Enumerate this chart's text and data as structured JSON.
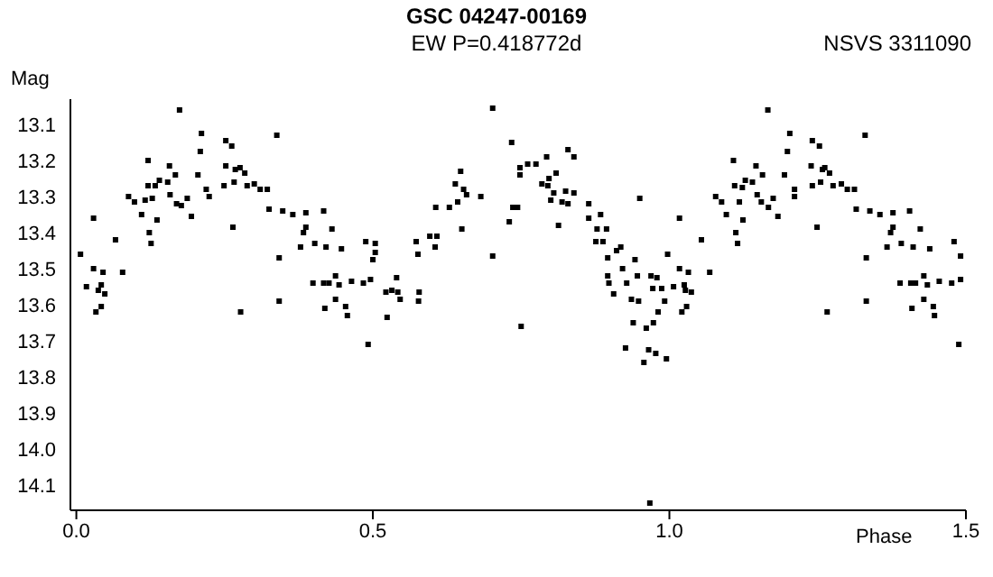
{
  "chart_data": {
    "type": "scatter",
    "title": "GSC 04247-00169",
    "subtitle": "EW P=0.418772d",
    "annotations": [
      "NSVS 3311090"
    ],
    "xlabel": "Phase",
    "ylabel": "Mag",
    "xlim": [
      -0.01,
      1.5
    ],
    "ylim": [
      14.17,
      13.03
    ],
    "xticks": [
      {
        "value": 0,
        "label": "0.0"
      },
      {
        "value": 0.5,
        "label": "0.5"
      },
      {
        "value": 1,
        "label": "1.0"
      },
      {
        "value": 1.5,
        "label": "1.5"
      }
    ],
    "yticks": [
      13.1,
      13.2,
      13.3,
      13.4,
      13.5,
      13.6,
      13.7,
      13.8,
      13.9,
      {
        "value": 14,
        "label": "14.0"
      },
      14.1
    ],
    "grid": false,
    "legend": false,
    "marker": "square",
    "series": [
      {
        "color": "#000000",
        "x": [
          0.007,
          0.017,
          0.029,
          0.029,
          0.033,
          0.037,
          0.042,
          0.042,
          0.045,
          0.048,
          0.066,
          0.078,
          0.088,
          0.098,
          0.11,
          0.116,
          0.121,
          0.121,
          0.123,
          0.126,
          0.128,
          0.133,
          0.136,
          0.14,
          0.154,
          0.157,
          0.158,
          0.167,
          0.169,
          0.174,
          0.177,
          0.187,
          0.194,
          0.205,
          0.209,
          0.211,
          0.219,
          0.224,
          0.249,
          0.252,
          0.252,
          0.262,
          0.264,
          0.266,
          0.268,
          0.276,
          0.277,
          0.284,
          0.288,
          0.3,
          0.31,
          0.322,
          0.325,
          0.338,
          0.342,
          0.342,
          0.348,
          0.365,
          0.378,
          0.383,
          0.387,
          0.387,
          0.399,
          0.402,
          0.417,
          0.417,
          0.419,
          0.421,
          0.426,
          0.431,
          0.437,
          0.437,
          0.443,
          0.447,
          0.454,
          0.457,
          0.464,
          0.484,
          0.492,
          0.488,
          0.496,
          0.5,
          0.504,
          0.504,
          0.522,
          0.524,
          0.532,
          0.54,
          0.542,
          0.546,
          0.573,
          0.576,
          0.578,
          0.577,
          0.596,
          0.605,
          0.608,
          0.606,
          0.629,
          0.639,
          0.643,
          0.648,
          0.65,
          0.653,
          0.658,
          0.682,
          0.702,
          0.702,
          0.73,
          0.734,
          0.736,
          0.744,
          0.748,
          0.748,
          0.75,
          0.761,
          0.775,
          0.785,
          0.793,
          0.795,
          0.797,
          0.8,
          0.805,
          0.809,
          0.813,
          0.819,
          0.825,
          0.829,
          0.829,
          0.839,
          0.839,
          0.864,
          0.864,
          0.876,
          0.878,
          0.884,
          0.888,
          0.894,
          0.896,
          0.896,
          0.898,
          0.906,
          0.911,
          0.918,
          0.921,
          0.926,
          0.928,
          0.936,
          0.939,
          0.942,
          0.946,
          0.948,
          0.95,
          0.957,
          0.961,
          0.965,
          0.969,
          0.972,
          0.973,
          0.977,
          0.979,
          0.981,
          0.987,
          0.992,
          0.995,
          0.997,
          0.967,
          1.007,
          1.017,
          1.017,
          1.021,
          1.025,
          1.027,
          1.029,
          1.032,
          1.037,
          1.054,
          1.068,
          1.078,
          1.088,
          1.096,
          1.108,
          1.11,
          1.112,
          1.115,
          1.118,
          1.123,
          1.124,
          1.128,
          1.14,
          1.146,
          1.148,
          1.155,
          1.157,
          1.166,
          1.167,
          1.175,
          1.183,
          1.194,
          1.199,
          1.203,
          1.211,
          1.211,
          1.239,
          1.241,
          1.241,
          1.249,
          1.253,
          1.255,
          1.258,
          1.262,
          1.266,
          1.27,
          1.276,
          1.29,
          1.3,
          1.312,
          1.315,
          1.33,
          1.332,
          1.332,
          1.338,
          1.355,
          1.367,
          1.373,
          1.377,
          1.377,
          1.389,
          1.391,
          1.405,
          1.407,
          1.409,
          1.411,
          1.415,
          1.423,
          1.429,
          1.429,
          1.435,
          1.439,
          1.445,
          1.447,
          1.455,
          1.476,
          1.48,
          1.488,
          1.491,
          1.491
        ],
        "values": [
          13.46,
          13.55,
          13.36,
          13.5,
          13.62,
          13.56,
          13.545,
          13.605,
          13.51,
          13.57,
          13.42,
          13.51,
          13.3,
          13.315,
          13.35,
          13.31,
          13.2,
          13.27,
          13.4,
          13.43,
          13.305,
          13.27,
          13.365,
          13.255,
          13.26,
          13.215,
          13.295,
          13.24,
          13.32,
          13.06,
          13.325,
          13.305,
          13.355,
          13.24,
          13.175,
          13.125,
          13.28,
          13.3,
          13.27,
          13.145,
          13.215,
          13.16,
          13.385,
          13.26,
          13.225,
          13.22,
          13.62,
          13.235,
          13.27,
          13.265,
          13.28,
          13.28,
          13.335,
          13.13,
          13.47,
          13.59,
          13.34,
          13.35,
          13.44,
          13.4,
          13.345,
          13.385,
          13.54,
          13.43,
          13.34,
          13.54,
          13.61,
          13.44,
          13.54,
          13.39,
          13.585,
          13.52,
          13.545,
          13.445,
          13.605,
          13.63,
          13.535,
          13.54,
          13.71,
          13.425,
          13.53,
          13.475,
          13.43,
          13.455,
          13.565,
          13.635,
          13.56,
          13.525,
          13.565,
          13.585,
          13.425,
          13.46,
          13.565,
          13.59,
          13.41,
          13.44,
          13.41,
          13.33,
          13.33,
          13.265,
          13.315,
          13.23,
          13.39,
          13.28,
          13.295,
          13.3,
          13.055,
          13.465,
          13.37,
          13.15,
          13.33,
          13.33,
          13.22,
          13.24,
          13.66,
          13.21,
          13.21,
          13.265,
          13.19,
          13.27,
          13.25,
          13.31,
          13.29,
          13.235,
          13.38,
          13.315,
          13.285,
          13.17,
          13.32,
          13.19,
          13.29,
          13.32,
          13.36,
          13.425,
          13.39,
          13.35,
          13.425,
          13.39,
          13.47,
          13.52,
          13.54,
          13.57,
          13.45,
          13.44,
          13.5,
          13.72,
          13.54,
          13.585,
          13.65,
          13.475,
          13.52,
          13.59,
          13.305,
          13.76,
          13.665,
          13.725,
          13.52,
          13.555,
          13.65,
          13.735,
          13.525,
          13.62,
          13.555,
          13.59,
          13.75,
          13.46,
          14.15,
          13.55,
          13.36,
          13.5,
          13.62,
          13.545,
          13.56,
          13.605,
          13.51,
          13.565,
          13.42,
          13.51,
          13.3,
          13.315,
          13.35,
          13.2,
          13.27,
          13.4,
          13.43,
          13.315,
          13.275,
          13.365,
          13.255,
          13.26,
          13.215,
          13.295,
          13.315,
          13.24,
          13.06,
          13.33,
          13.305,
          13.355,
          13.24,
          13.175,
          13.125,
          13.3,
          13.28,
          13.215,
          13.145,
          13.27,
          13.385,
          13.16,
          13.26,
          13.225,
          13.22,
          13.62,
          13.235,
          13.27,
          13.265,
          13.28,
          13.28,
          13.335,
          13.13,
          13.47,
          13.59,
          13.34,
          13.35,
          13.44,
          13.4,
          13.345,
          13.385,
          13.54,
          13.43,
          13.34,
          13.54,
          13.61,
          13.44,
          13.54,
          13.39,
          13.585,
          13.52,
          13.545,
          13.445,
          13.605,
          13.63,
          13.535,
          13.54,
          13.425,
          13.71,
          13.465,
          13.53
        ]
      }
    ]
  }
}
